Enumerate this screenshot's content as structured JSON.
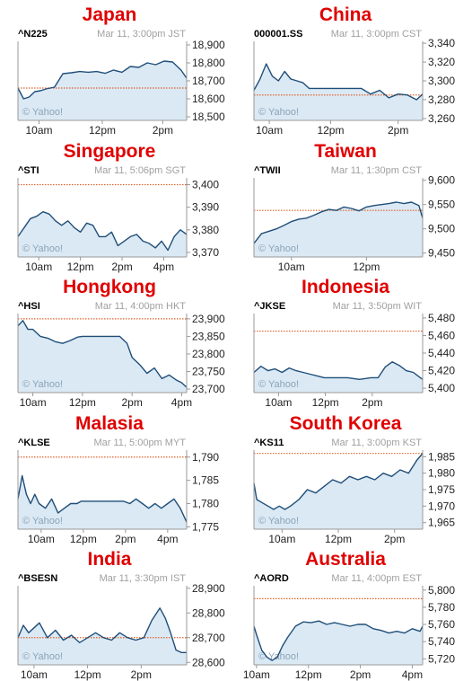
{
  "colors": {
    "title": "#e00000",
    "line": "#1f4e79",
    "fill": "#dbe9f4",
    "ref": "#e0602a",
    "frame": "#999999"
  },
  "watermark": "© Yahoo!",
  "chart_data": [
    {
      "type": "area",
      "title": "Japan",
      "symbol": "^N225",
      "stamp": "Mar 11, 3:00pm JST",
      "ylim": [
        18480,
        18920
      ],
      "yticks": [
        "18,900",
        "18,800",
        "18,700",
        "18,600",
        "18,500"
      ],
      "ytick_values": [
        18900,
        18800,
        18700,
        18600,
        18500
      ],
      "xticks": [
        "10am",
        "12pm",
        "2pm"
      ],
      "xtick_values": [
        9.75,
        12,
        14.15
      ],
      "xlim": [
        9,
        15
      ],
      "ref": 18660,
      "series": [
        {
          "x": [
            9,
            9.2,
            9.4,
            9.6,
            9.8,
            10,
            10.3,
            10.6,
            10.9,
            11.2,
            11.5,
            11.8,
            12.1,
            12.4,
            12.7,
            13,
            13.3,
            13.6,
            13.9,
            14.2,
            14.5,
            14.8,
            15
          ],
          "values": [
            18660,
            18600,
            18610,
            18640,
            18645,
            18655,
            18665,
            18740,
            18745,
            18752,
            18748,
            18752,
            18742,
            18760,
            18748,
            18780,
            18775,
            18800,
            18790,
            18810,
            18805,
            18760,
            18715
          ]
        }
      ]
    },
    {
      "type": "area",
      "title": "China",
      "symbol": "000001.SS",
      "stamp": "Mar 11, 3:00pm CST",
      "ylim": [
        3258,
        3342
      ],
      "yticks": [
        "3,340",
        "3,320",
        "3,300",
        "3,280",
        "3,260"
      ],
      "ytick_values": [
        3340,
        3320,
        3300,
        3280,
        3260
      ],
      "xticks": [
        "10am",
        "12pm",
        "2pm"
      ],
      "xtick_values": [
        10,
        12,
        14.2
      ],
      "xlim": [
        9.5,
        15
      ],
      "ref": 3285,
      "series": [
        {
          "x": [
            9.5,
            9.7,
            9.9,
            10.1,
            10.3,
            10.5,
            10.7,
            10.9,
            11.1,
            11.3,
            11.5,
            12.5,
            13,
            13.3,
            13.6,
            13.9,
            14.2,
            14.5,
            14.8,
            15
          ],
          "values": [
            3290,
            3302,
            3318,
            3305,
            3300,
            3310,
            3302,
            3300,
            3298,
            3292,
            3292,
            3292,
            3292,
            3286,
            3290,
            3282,
            3286,
            3285,
            3280,
            3286
          ]
        }
      ]
    },
    {
      "type": "area",
      "title": "Singapore",
      "symbol": "^STI",
      "stamp": "Mar 11, 5:06pm SGT",
      "ylim": [
        3368,
        3403
      ],
      "yticks": [
        "3,400",
        "3,390",
        "3,380",
        "3,370"
      ],
      "ytick_values": [
        3400,
        3390,
        3380,
        3370
      ],
      "xticks": [
        "10am",
        "12pm",
        "2pm",
        "4pm"
      ],
      "xtick_values": [
        10,
        12,
        14,
        16
      ],
      "xlim": [
        9,
        17.1
      ],
      "ref": 3400,
      "series": [
        {
          "x": [
            9,
            9.3,
            9.6,
            9.9,
            10.2,
            10.5,
            10.8,
            11.1,
            11.4,
            11.7,
            12,
            12.3,
            12.6,
            12.9,
            13.2,
            13.5,
            13.8,
            14.1,
            14.4,
            14.7,
            15,
            15.3,
            15.6,
            15.9,
            16.2,
            16.5,
            16.8,
            17.1
          ],
          "values": [
            3377,
            3381,
            3385,
            3386,
            3388,
            3387,
            3384,
            3382,
            3384,
            3381,
            3379,
            3383,
            3382,
            3377,
            3377,
            3379,
            3373,
            3375,
            3377,
            3378,
            3375,
            3374,
            3372,
            3375,
            3371,
            3377,
            3380,
            3378
          ]
        }
      ]
    },
    {
      "type": "area",
      "title": "Taiwan",
      "symbol": "^TWII",
      "stamp": "Mar 11, 1:30pm CST",
      "ylim": [
        9442,
        9605
      ],
      "yticks": [
        "9,600",
        "9,550",
        "9,500",
        "9,450"
      ],
      "ytick_values": [
        9600,
        9550,
        9500,
        9450
      ],
      "xticks": [
        "10am",
        "12pm"
      ],
      "xtick_values": [
        10,
        12
      ],
      "xlim": [
        9,
        13.5
      ],
      "ref": 9538,
      "series": [
        {
          "x": [
            9,
            9.2,
            9.4,
            9.6,
            9.8,
            10,
            10.2,
            10.4,
            10.6,
            10.8,
            11,
            11.2,
            11.4,
            11.6,
            11.8,
            12,
            12.2,
            12.4,
            12.6,
            12.8,
            13,
            13.2,
            13.4,
            13.5
          ],
          "values": [
            9470,
            9490,
            9495,
            9500,
            9507,
            9515,
            9520,
            9522,
            9528,
            9535,
            9540,
            9538,
            9545,
            9542,
            9537,
            9545,
            9548,
            9550,
            9552,
            9555,
            9552,
            9555,
            9548,
            9522
          ]
        }
      ]
    },
    {
      "type": "area",
      "title": "Hongkong",
      "symbol": "^HSI",
      "stamp": "Mar 11, 4:00pm HKT",
      "ylim": [
        23690,
        23915
      ],
      "yticks": [
        "23,900",
        "23,850",
        "23,800",
        "23,750",
        "23,700"
      ],
      "ytick_values": [
        23900,
        23850,
        23800,
        23750,
        23700
      ],
      "xticks": [
        "10am",
        "12pm",
        "2pm",
        "4pm"
      ],
      "xtick_values": [
        10,
        12,
        14,
        16
      ],
      "xlim": [
        9.4,
        16.2
      ],
      "ref": 23900,
      "series": [
        {
          "x": [
            9.4,
            9.6,
            9.8,
            10,
            10.3,
            10.6,
            10.9,
            11.2,
            11.5,
            11.8,
            12,
            12.5,
            13,
            13.5,
            13.8,
            14,
            14.3,
            14.6,
            14.9,
            15.2,
            15.5,
            15.8,
            16,
            16.2
          ],
          "values": [
            23880,
            23895,
            23870,
            23870,
            23850,
            23845,
            23835,
            23830,
            23838,
            23848,
            23850,
            23850,
            23850,
            23850,
            23830,
            23790,
            23770,
            23745,
            23760,
            23730,
            23740,
            23725,
            23718,
            23705
          ]
        }
      ]
    },
    {
      "type": "area",
      "title": "Indonesia",
      "symbol": "^JKSE",
      "stamp": "Mar 11, 3:50pm WIT",
      "ylim": [
        5395,
        5485
      ],
      "yticks": [
        "5,480",
        "5,460",
        "5,440",
        "5,420",
        "5,400"
      ],
      "ytick_values": [
        5480,
        5460,
        5440,
        5420,
        5400
      ],
      "xticks": [
        "10am",
        "12pm",
        "2pm"
      ],
      "xtick_values": [
        10.05,
        12.05,
        14.05
      ],
      "xlim": [
        9,
        16.2
      ],
      "ref": 5465,
      "series": [
        {
          "x": [
            9,
            9.3,
            9.6,
            9.9,
            10.2,
            10.5,
            10.8,
            11.1,
            11.4,
            11.7,
            12,
            12.5,
            13,
            13.5,
            14,
            14.3,
            14.6,
            14.9,
            15.2,
            15.5,
            15.8,
            16.1,
            16.2
          ],
          "values": [
            5418,
            5425,
            5420,
            5422,
            5418,
            5423,
            5420,
            5418,
            5416,
            5414,
            5412,
            5412,
            5412,
            5410,
            5412,
            5412,
            5424,
            5430,
            5426,
            5420,
            5418,
            5412,
            5410
          ]
        }
      ]
    },
    {
      "type": "area",
      "title": "Malasia",
      "symbol": "^KLSE",
      "stamp": "Mar 11, 5:00pm MYT",
      "ylim": [
        1774.5,
        1791.5
      ],
      "yticks": [
        "1,790",
        "1,785",
        "1,780",
        "1,775"
      ],
      "ytick_values": [
        1790,
        1785,
        1780,
        1775
      ],
      "xticks": [
        "10am",
        "12pm",
        "2pm",
        "4pm"
      ],
      "xtick_values": [
        10.1,
        12.1,
        14.1,
        16.1
      ],
      "xlim": [
        9,
        17
      ],
      "ref": 1790,
      "series": [
        {
          "x": [
            9,
            9.2,
            9.4,
            9.6,
            9.8,
            10,
            10.3,
            10.6,
            10.9,
            11.2,
            11.5,
            11.8,
            12,
            13,
            14,
            14.3,
            14.6,
            14.9,
            15.2,
            15.5,
            15.8,
            16.1,
            16.4,
            16.7,
            17
          ],
          "values": [
            1781,
            1786,
            1782,
            1780,
            1782,
            1780,
            1779,
            1781,
            1778,
            1779,
            1780,
            1780,
            1780.5,
            1780.5,
            1780.5,
            1780,
            1781,
            1780,
            1779,
            1780,
            1779,
            1780,
            1781,
            1779,
            1776
          ]
        }
      ]
    },
    {
      "type": "area",
      "title": "South Korea",
      "symbol": "^KS11",
      "stamp": "Mar 11, 3:00pm KST",
      "ylim": [
        1963,
        1987
      ],
      "yticks": [
        "1,985",
        "1,980",
        "1,975",
        "1,970",
        "1,965"
      ],
      "ytick_values": [
        1985,
        1980,
        1975,
        1970,
        1965
      ],
      "xticks": [
        "10am",
        "12pm",
        "2pm"
      ],
      "xtick_values": [
        10,
        12,
        14
      ],
      "xlim": [
        9,
        15
      ],
      "ref": 1986,
      "series": [
        {
          "x": [
            9,
            9.1,
            9.3,
            9.5,
            9.7,
            9.9,
            10.1,
            10.3,
            10.6,
            10.9,
            11.2,
            11.5,
            11.8,
            12.1,
            12.4,
            12.7,
            13,
            13.3,
            13.6,
            13.9,
            14.2,
            14.5,
            14.8,
            15
          ],
          "values": [
            1977,
            1972,
            1971,
            1970,
            1969,
            1970,
            1969,
            1970,
            1972,
            1975,
            1974,
            1976,
            1978,
            1977,
            1979,
            1978,
            1979,
            1978,
            1980,
            1979,
            1981,
            1980,
            1984,
            1986
          ]
        }
      ]
    },
    {
      "type": "area",
      "title": "India",
      "symbol": "^BSESN",
      "stamp": "Mar 11, 3:30pm IST",
      "ylim": [
        28590,
        28910
      ],
      "yticks": [
        "28,900",
        "28,800",
        "28,700",
        "28,600"
      ],
      "ytick_values": [
        28900,
        28800,
        28700,
        28600
      ],
      "xticks": [
        "10am",
        "12pm",
        "2pm"
      ],
      "xtick_values": [
        9.8,
        11.8,
        13.8
      ],
      "xlim": [
        9.2,
        15.5
      ],
      "ref": 28700,
      "series": [
        {
          "x": [
            9.2,
            9.4,
            9.6,
            9.8,
            10,
            10.3,
            10.6,
            10.9,
            11.2,
            11.5,
            11.8,
            12.1,
            12.4,
            12.7,
            13,
            13.3,
            13.6,
            13.9,
            14.2,
            14.5,
            14.7,
            14.9,
            15.1,
            15.3,
            15.5
          ],
          "values": [
            28700,
            28750,
            28720,
            28740,
            28760,
            28700,
            28730,
            28690,
            28710,
            28680,
            28700,
            28720,
            28700,
            28690,
            28720,
            28700,
            28690,
            28700,
            28770,
            28820,
            28780,
            28720,
            28650,
            28640,
            28640
          ]
        }
      ]
    },
    {
      "type": "area",
      "title": "Australia",
      "symbol": "^AORD",
      "stamp": "Mar 11, 4:00pm EST",
      "ylim": [
        5713,
        5805
      ],
      "yticks": [
        "5,800",
        "5,780",
        "5,760",
        "5,740",
        "5,720"
      ],
      "ytick_values": [
        5800,
        5780,
        5760,
        5740,
        5720
      ],
      "xticks": [
        "10am",
        "12pm",
        "2pm",
        "4pm"
      ],
      "xtick_values": [
        10.1,
        12.1,
        14.1,
        16.1
      ],
      "xlim": [
        10,
        16.5
      ],
      "ref": 5790,
      "series": [
        {
          "x": [
            10,
            10.1,
            10.3,
            10.5,
            10.7,
            10.9,
            11.1,
            11.3,
            11.6,
            11.9,
            12.2,
            12.5,
            12.8,
            13.1,
            13.4,
            13.7,
            14,
            14.3,
            14.6,
            14.9,
            15.2,
            15.5,
            15.8,
            16.1,
            16.4,
            16.5
          ],
          "values": [
            5758,
            5748,
            5730,
            5722,
            5718,
            5722,
            5735,
            5745,
            5758,
            5763,
            5762,
            5764,
            5760,
            5762,
            5760,
            5758,
            5760,
            5760,
            5755,
            5753,
            5750,
            5752,
            5750,
            5755,
            5752,
            5758
          ]
        }
      ]
    }
  ]
}
